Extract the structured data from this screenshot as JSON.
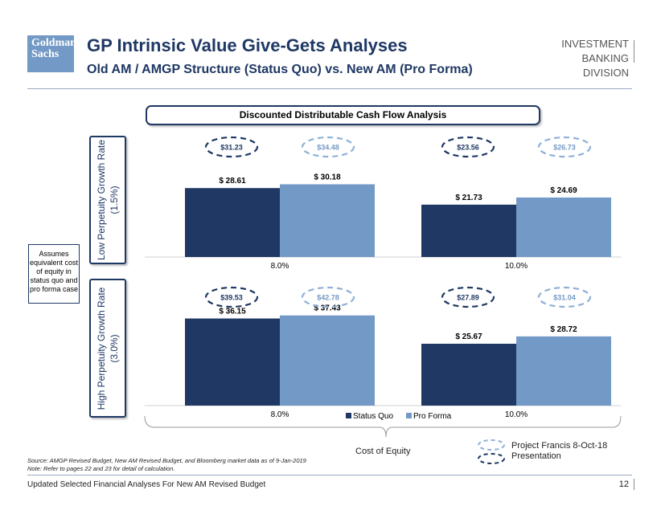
{
  "header": {
    "logo_line1": "Goldman",
    "logo_line2": "Sachs",
    "title": "GP Intrinsic Value Give-Gets Analyses",
    "subtitle": "Old AM / AMGP Structure (Status Quo) vs. New AM (Pro Forma)",
    "division_line1": "INVESTMENT BANKING",
    "division_line2": "DIVISION"
  },
  "section_title": "Discounted Distributable Cash Flow Analysis",
  "side_labels": {
    "low": "Low Perpetuity Growth Rate\n(1.5%)",
    "high": "High Perpetuity Growth Rate\n(3.0%)"
  },
  "assumption_note": "Assumes equivalent cost of equity in status quo and pro forma case",
  "chart_data": [
    {
      "type": "bar",
      "title": "Low Perpetuity Growth Rate (1.5%)",
      "xlabel": "Cost of Equity",
      "categories": [
        "8.0%",
        "10.0%"
      ],
      "series": [
        {
          "name": "Status Quo",
          "values": [
            28.61,
            21.73
          ],
          "labels": [
            "$ 28.61",
            "$ 21.73"
          ],
          "project_francis": [
            "$31.23",
            "$23.56"
          ]
        },
        {
          "name": "Pro Forma",
          "values": [
            30.18,
            24.69
          ],
          "labels": [
            "$ 30.18",
            "$ 24.69"
          ],
          "project_francis": [
            "$34.48",
            "$26.73"
          ]
        }
      ],
      "ylim": [
        0,
        40
      ]
    },
    {
      "type": "bar",
      "title": "High Perpetuity Growth Rate (3.0%)",
      "xlabel": "Cost of Equity",
      "categories": [
        "8.0%",
        "10.0%"
      ],
      "series": [
        {
          "name": "Status Quo",
          "values": [
            36.15,
            25.67
          ],
          "labels": [
            "$ 36.15",
            "$ 25.67"
          ],
          "project_francis": [
            "$39.53",
            "$27.89"
          ]
        },
        {
          "name": "Pro Forma",
          "values": [
            37.43,
            28.72
          ],
          "labels": [
            "$ 37.43",
            "$ 28.72"
          ],
          "project_francis": [
            "$42.78",
            "$31.04"
          ]
        }
      ],
      "ylim": [
        0,
        40
      ]
    }
  ],
  "legend": {
    "status_quo": "Status Quo",
    "pro_forma": "Pro Forma"
  },
  "axis_label": "Cost of Equity",
  "project_francis_note": "Project Francis 8-Oct-18\nPresentation",
  "source_note": "Source: AMGP Revised Budget, New AM Revised Budget, and Bloomberg market data as of 9-Jan-2019",
  "calc_note": "Note: Refer to pages 22 and 23 for detail of calculation.",
  "footer": "Updated Selected Financial Analyses For New AM Revised Budget",
  "page_number": "12",
  "colors": {
    "status_quo": "#1f3864",
    "pro_forma": "#7399c6",
    "dashed_pro_forma": "#8fb0d8"
  }
}
